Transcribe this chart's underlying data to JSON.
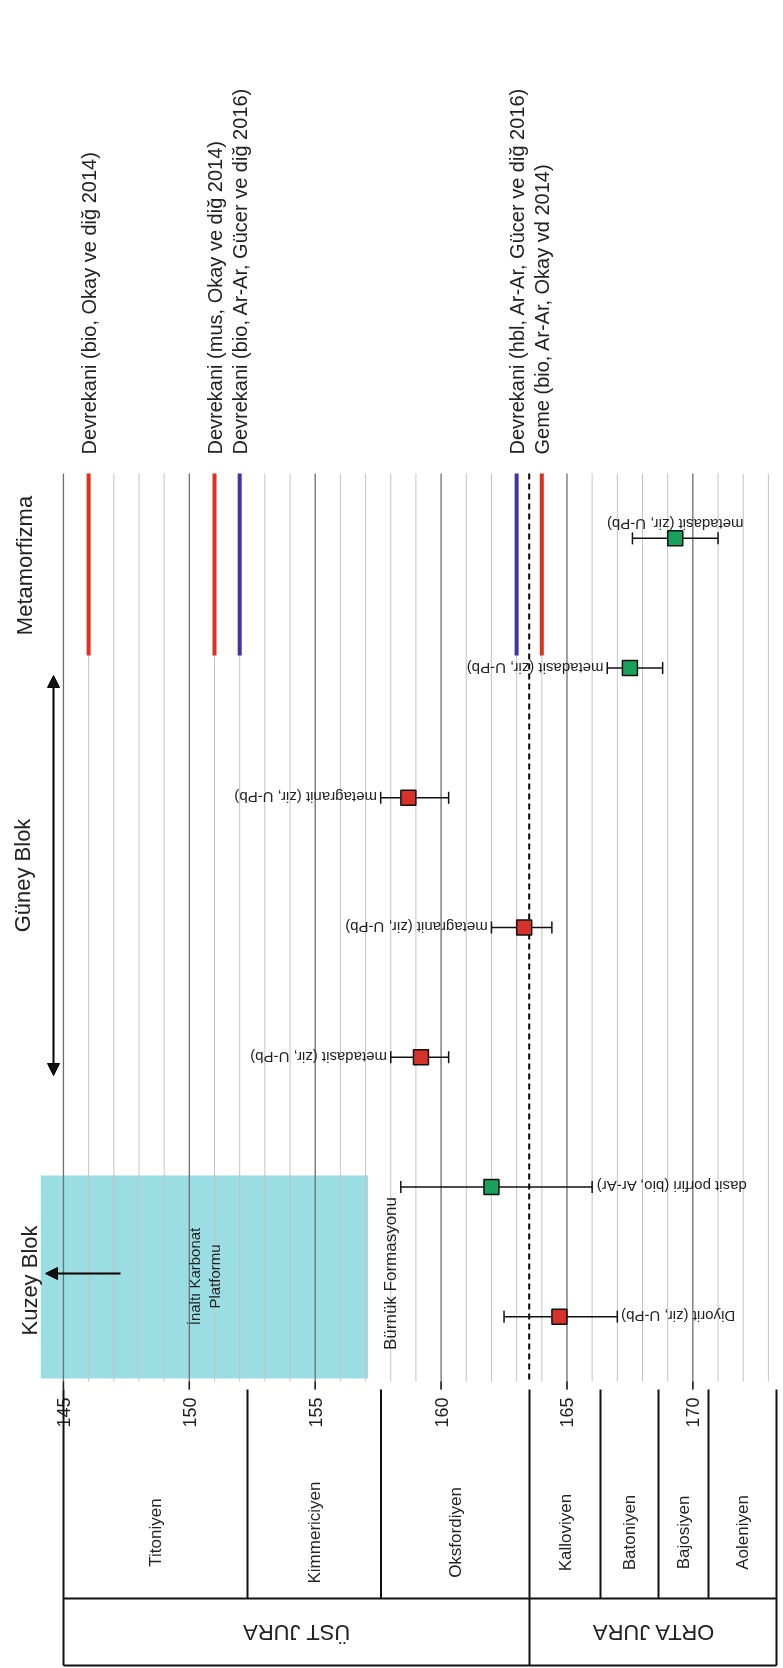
{
  "chart_data": {
    "type": "scatter",
    "orientation": "horizontal",
    "marker": "square",
    "grid": "x",
    "categories": [
      "metadasit (zir, U-Pb)",
      "metadasit (zir, U-Pb)",
      "metagranit (zir, U-Pb)",
      "metagranit (zir, U-Pb)",
      "metadasit (zir, U-Pb)",
      "dasit porfiri (bio, Ar-Ar)",
      "Diyorit (zir, U-Pb)"
    ],
    "values": [
      169.3,
      167.5,
      158.7,
      163.3,
      159.2,
      162.0,
      164.7
    ],
    "errors": [
      [
        167.6,
        171.0
      ],
      [
        166.6,
        168.8
      ],
      [
        157.6,
        160.3
      ],
      [
        162.0,
        164.4
      ],
      [
        158.0,
        160.3
      ],
      [
        158.4,
        166.0
      ],
      [
        162.5,
        167.0
      ]
    ],
    "colors": [
      "#19a05a",
      "#19a05a",
      "#d7322a",
      "#d7322a",
      "#d7322a",
      "#19a05a",
      "#d7322a"
    ],
    "xlim": [
      142.5,
      173.6
    ],
    "xticks": [
      145,
      {
        "value": 146,
        "label": null
      },
      {
        "value": 147,
        "label": null
      },
      {
        "value": 148,
        "label": null
      },
      {
        "value": 149,
        "label": null
      },
      150,
      {
        "value": 151,
        "label": null
      },
      {
        "value": 152,
        "label": null
      },
      {
        "value": 153,
        "label": null
      },
      {
        "value": 154,
        "label": null
      },
      155,
      {
        "value": 156,
        "label": null
      },
      {
        "value": 157,
        "label": null
      },
      {
        "value": 158,
        "label": null
      },
      {
        "value": 159,
        "label": null
      },
      160,
      {
        "value": 161,
        "label": null
      },
      {
        "value": 162,
        "label": null
      },
      {
        "value": 163,
        "label": null
      },
      {
        "value": 164,
        "label": null
      },
      165,
      {
        "value": 166,
        "label": null
      },
      {
        "value": 167,
        "label": null
      },
      {
        "value": 168,
        "label": null
      },
      {
        "value": 169,
        "label": null
      },
      170,
      {
        "value": 171,
        "label": null
      },
      {
        "value": 172,
        "label": null
      },
      {
        "value": 173,
        "label": null
      }
    ],
    "ref_lines": [
      {
        "axis": "x",
        "value": 146,
        "label": "Devrekani (bio, Okay ve diğ 2014)",
        "color": "#e0301e"
      },
      {
        "axis": "x",
        "value": 151,
        "label": "Devrekani (mus, Okay ve diğ 2014)",
        "color": "#e0301e"
      },
      {
        "axis": "x",
        "value": 152,
        "label": "Devrekani (bio, Ar-Ar, Gücer ve diğ 2016)",
        "color": "#3b36a8"
      },
      {
        "axis": "x",
        "value": 163,
        "label": "Devrekani (hbl, Ar-Ar, Gücer ve diğ 2016)",
        "color": "#3b36a8"
      },
      {
        "axis": "x",
        "value": 164,
        "label": "Geme (bio, Ar-Ar, Okay vd 2014)",
        "color": "#e0301e"
      },
      {
        "axis": "x",
        "value": 163.5,
        "color": "#000000",
        "line_style": "dashed"
      }
    ],
    "bands": [
      {
        "axis": "x",
        "from": 144.1,
        "to": 157.1,
        "label": "İnaltı Karbonat\nPlatformu",
        "color": "#9adde3"
      }
    ],
    "annotations": [
      "Metamorfizma",
      "Güney Blok",
      "Kuzey Blok",
      "Bürnük Formasyonu",
      "Titoniyen",
      "Kimmericiyen",
      "Oksfordiyen",
      "Kalloviyen",
      "Batoniyen",
      "Bajosiyen",
      "Aoleniyen",
      "ÜST JURA",
      "ORTA JURA"
    ]
  }
}
